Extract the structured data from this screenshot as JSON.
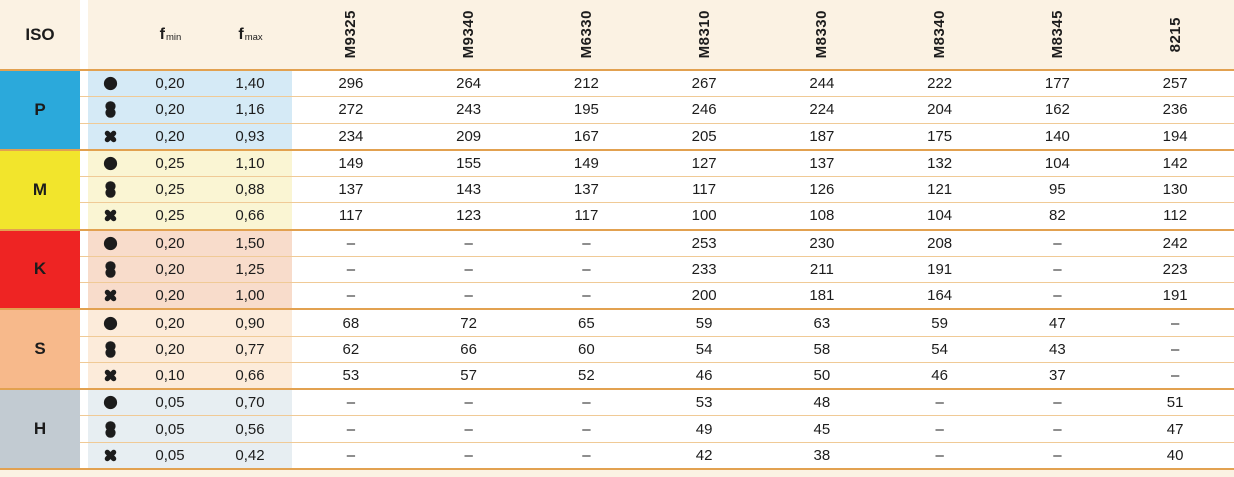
{
  "header": {
    "iso_label": "ISO",
    "f_min": {
      "base": "f",
      "sub": "min"
    },
    "f_max": {
      "base": "f",
      "sub": "max"
    },
    "grade_columns": [
      "M9325",
      "M9340",
      "M6330",
      "M8310",
      "M8330",
      "M8340",
      "M8345",
      "8215"
    ]
  },
  "colors": {
    "header_bg": "#fbf2e3",
    "separator_strong": "#e2a150",
    "separator_light": "#f0ca96",
    "text": "#1c1c1c"
  },
  "groups": [
    {
      "iso": "P",
      "color": "#2ba9db",
      "tint": "#d5eaf6",
      "rows": [
        {
          "icon": "circle-icon",
          "f_min": "0,20",
          "f_max": "1,40",
          "values": [
            "296",
            "264",
            "212",
            "267",
            "244",
            "222",
            "177",
            "257"
          ]
        },
        {
          "icon": "double-circle-icon",
          "f_min": "0,20",
          "f_max": "1,16",
          "values": [
            "272",
            "243",
            "195",
            "246",
            "224",
            "204",
            "162",
            "236"
          ]
        },
        {
          "icon": "cross-icon",
          "f_min": "0,20",
          "f_max": "0,93",
          "values": [
            "234",
            "209",
            "167",
            "205",
            "187",
            "175",
            "140",
            "194"
          ]
        }
      ]
    },
    {
      "iso": "M",
      "color": "#f2e52c",
      "tint": "#faf5d3",
      "rows": [
        {
          "icon": "circle-icon",
          "f_min": "0,25",
          "f_max": "1,10",
          "values": [
            "149",
            "155",
            "149",
            "127",
            "137",
            "132",
            "104",
            "142"
          ]
        },
        {
          "icon": "double-circle-icon",
          "f_min": "0,25",
          "f_max": "0,88",
          "values": [
            "137",
            "143",
            "137",
            "117",
            "126",
            "121",
            "95",
            "130"
          ]
        },
        {
          "icon": "cross-icon",
          "f_min": "0,25",
          "f_max": "0,66",
          "values": [
            "117",
            "123",
            "117",
            "100",
            "108",
            "104",
            "82",
            "112"
          ]
        }
      ]
    },
    {
      "iso": "K",
      "color": "#ee2423",
      "tint": "#f8dccb",
      "rows": [
        {
          "icon": "circle-icon",
          "f_min": "0,20",
          "f_max": "1,50",
          "values": [
            "–",
            "–",
            "–",
            "253",
            "230",
            "208",
            "–",
            "242"
          ]
        },
        {
          "icon": "double-circle-icon",
          "f_min": "0,20",
          "f_max": "1,25",
          "values": [
            "–",
            "–",
            "–",
            "233",
            "211",
            "191",
            "–",
            "223"
          ]
        },
        {
          "icon": "cross-icon",
          "f_min": "0,20",
          "f_max": "1,00",
          "values": [
            "–",
            "–",
            "–",
            "200",
            "181",
            "164",
            "–",
            "191"
          ]
        }
      ]
    },
    {
      "iso": "S",
      "color": "#f7b98b",
      "tint": "#fcebda",
      "rows": [
        {
          "icon": "circle-icon",
          "f_min": "0,20",
          "f_max": "0,90",
          "values": [
            "68",
            "72",
            "65",
            "59",
            "63",
            "59",
            "47",
            "–"
          ]
        },
        {
          "icon": "double-circle-icon",
          "f_min": "0,20",
          "f_max": "0,77",
          "values": [
            "62",
            "66",
            "60",
            "54",
            "58",
            "54",
            "43",
            "–"
          ]
        },
        {
          "icon": "cross-icon",
          "f_min": "0,10",
          "f_max": "0,66",
          "values": [
            "53",
            "57",
            "52",
            "46",
            "50",
            "46",
            "37",
            "–"
          ]
        }
      ]
    },
    {
      "iso": "H",
      "color": "#c2cbd2",
      "tint": "#e7eef2",
      "rows": [
        {
          "icon": "circle-icon",
          "f_min": "0,05",
          "f_max": "0,70",
          "values": [
            "–",
            "–",
            "–",
            "53",
            "48",
            "–",
            "–",
            "51"
          ]
        },
        {
          "icon": "double-circle-icon",
          "f_min": "0,05",
          "f_max": "0,56",
          "values": [
            "–",
            "–",
            "–",
            "49",
            "45",
            "–",
            "–",
            "47"
          ]
        },
        {
          "icon": "cross-icon",
          "f_min": "0,05",
          "f_max": "0,42",
          "values": [
            "–",
            "–",
            "–",
            "42",
            "38",
            "–",
            "–",
            "40"
          ]
        }
      ]
    }
  ]
}
